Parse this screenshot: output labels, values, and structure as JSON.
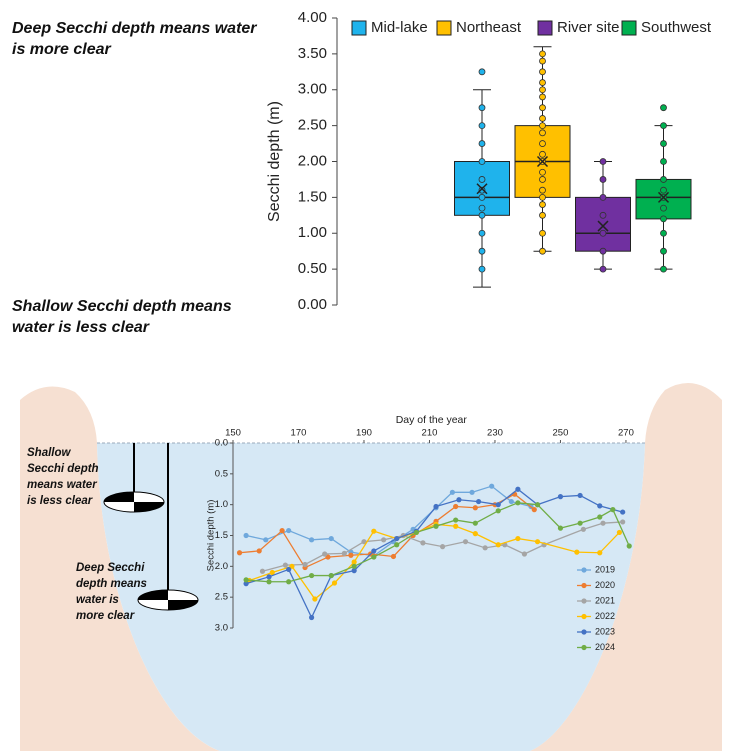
{
  "chart_data": [
    {
      "type": "box",
      "ylabel": "Secchi depth (m)",
      "ylim": [
        0,
        4
      ],
      "yticks": [
        {
          "value": 0,
          "label": "0.00"
        },
        {
          "value": 0.5,
          "label": "0.50"
        },
        {
          "value": 1,
          "label": "1.00"
        },
        {
          "value": 1.5,
          "label": "1.50"
        },
        {
          "value": 2,
          "label": "2.00"
        },
        {
          "value": 2.5,
          "label": "2.50"
        },
        {
          "value": 3,
          "label": "3.00"
        },
        {
          "value": 3.5,
          "label": "3.50"
        },
        {
          "value": 4,
          "label": "4.00"
        }
      ],
      "legend": "top",
      "annotations": [
        "Deep Secchi depth means water is more clear",
        "Shallow Secchi depth means water is less clear"
      ],
      "series": [
        {
          "name": "Mid-lake",
          "color": "#1fb3ec",
          "min": 0.25,
          "q1": 1.25,
          "median": 1.5,
          "q3": 2.0,
          "max": 3.0,
          "mean": 1.62,
          "points": [
            0.5,
            0.75,
            1.0,
            1.25,
            1.35,
            1.5,
            1.6,
            1.75,
            2.0,
            2.25,
            2.5,
            2.75,
            3.25
          ]
        },
        {
          "name": "Northeast",
          "color": "#ffc000",
          "min": 0.75,
          "q1": 1.5,
          "median": 2.0,
          "q3": 2.5,
          "max": 3.6,
          "mean": 2.0,
          "points": [
            0.75,
            1.0,
            1.25,
            1.4,
            1.5,
            1.6,
            1.75,
            1.85,
            2.0,
            2.1,
            2.25,
            2.4,
            2.5,
            2.6,
            2.75,
            2.9,
            3.0,
            3.1,
            3.25,
            3.4,
            3.5
          ]
        },
        {
          "name": "River site",
          "color": "#7030a0",
          "min": 0.5,
          "q1": 0.75,
          "median": 1.0,
          "q3": 1.5,
          "max": 2.0,
          "mean": 1.1,
          "points": [
            0.5,
            0.75,
            1.0,
            1.25,
            1.5,
            1.75,
            2.0
          ]
        },
        {
          "name": "Southwest",
          "color": "#00b050",
          "min": 0.5,
          "q1": 1.2,
          "median": 1.5,
          "q3": 1.75,
          "max": 2.5,
          "mean": 1.5,
          "points": [
            0.5,
            0.75,
            1.0,
            1.2,
            1.35,
            1.5,
            1.6,
            1.75,
            2.0,
            2.25,
            2.5,
            2.75
          ]
        }
      ]
    },
    {
      "type": "line",
      "xlabel": "Day of the year",
      "ylabel": "Secchi depth (m)",
      "xlim": [
        150,
        276
      ],
      "xticks": [
        150,
        170,
        190,
        210,
        230,
        250,
        270
      ],
      "ylim": [
        3,
        0
      ],
      "yticks": [
        {
          "value": 0,
          "label": "0.0"
        },
        {
          "value": 0.5,
          "label": "0.5"
        },
        {
          "value": 1,
          "label": "1.0"
        },
        {
          "value": 1.5,
          "label": "1.5"
        },
        {
          "value": 2,
          "label": "2.0"
        },
        {
          "value": 2.5,
          "label": "2.5"
        },
        {
          "value": 3,
          "label": "3.0"
        }
      ],
      "legend": "lower right",
      "annotations": [
        "Shallow Secchi depth means water is less clear",
        "Deep Secchi depth means water is more clear"
      ],
      "series": [
        {
          "name": "2019",
          "color": "#6fa8dc",
          "x": [
            154,
            160,
            167,
            174,
            180,
            186,
            193,
            199,
            205,
            212,
            217,
            223,
            229,
            235,
            241
          ],
          "values": [
            1.5,
            1.57,
            1.42,
            1.57,
            1.55,
            1.77,
            1.83,
            1.6,
            1.4,
            1.05,
            0.8,
            0.8,
            0.7,
            0.95,
            1.03
          ]
        },
        {
          "name": "2020",
          "color": "#ed7d31",
          "x": [
            152,
            158,
            165,
            172,
            179,
            186,
            192,
            199,
            205,
            212,
            218,
            224,
            230,
            236,
            242
          ],
          "values": [
            1.78,
            1.75,
            1.42,
            2.02,
            1.85,
            1.82,
            1.8,
            1.84,
            1.5,
            1.27,
            1.03,
            1.05,
            1.0,
            0.83,
            1.08
          ]
        },
        {
          "name": "2021",
          "color": "#a5a5a5",
          "x": [
            159,
            166,
            172,
            178,
            184,
            190,
            196,
            202,
            208,
            214,
            221,
            227,
            233,
            239,
            245,
            257,
            263,
            269
          ],
          "values": [
            2.08,
            1.98,
            1.97,
            1.8,
            1.79,
            1.6,
            1.57,
            1.5,
            1.62,
            1.68,
            1.6,
            1.7,
            1.65,
            1.8,
            1.65,
            1.4,
            1.3,
            1.28
          ]
        },
        {
          "name": "2022",
          "color": "#ffc000",
          "x": [
            155,
            162,
            168,
            175,
            181,
            187,
            193,
            200,
            206,
            212,
            218,
            224,
            231,
            237,
            243,
            255,
            262,
            268
          ],
          "values": [
            2.23,
            2.1,
            2.0,
            2.53,
            2.27,
            1.93,
            1.43,
            1.55,
            1.45,
            1.32,
            1.35,
            1.47,
            1.65,
            1.55,
            1.6,
            1.77,
            1.78,
            1.45
          ]
        },
        {
          "name": "2023",
          "color": "#4472c4",
          "x": [
            154,
            161,
            167,
            174,
            180,
            187,
            193,
            200,
            206,
            212,
            219,
            225,
            231,
            237,
            243,
            250,
            256,
            262,
            269
          ],
          "values": [
            2.28,
            2.17,
            2.05,
            2.83,
            2.15,
            2.07,
            1.75,
            1.55,
            1.43,
            1.03,
            0.92,
            0.95,
            1.0,
            0.75,
            1.0,
            0.87,
            0.85,
            1.02,
            1.12
          ]
        },
        {
          "name": "2024",
          "color": "#70ad47",
          "x": [
            154,
            161,
            167,
            174,
            180,
            187,
            193,
            200,
            206,
            212,
            218,
            224,
            231,
            237,
            243,
            250,
            256,
            262,
            266,
            271
          ],
          "values": [
            2.22,
            2.25,
            2.25,
            2.15,
            2.15,
            2.0,
            1.85,
            1.65,
            1.45,
            1.35,
            1.25,
            1.3,
            1.1,
            0.97,
            1.0,
            1.38,
            1.3,
            1.2,
            1.08,
            1.67
          ]
        }
      ]
    }
  ]
}
